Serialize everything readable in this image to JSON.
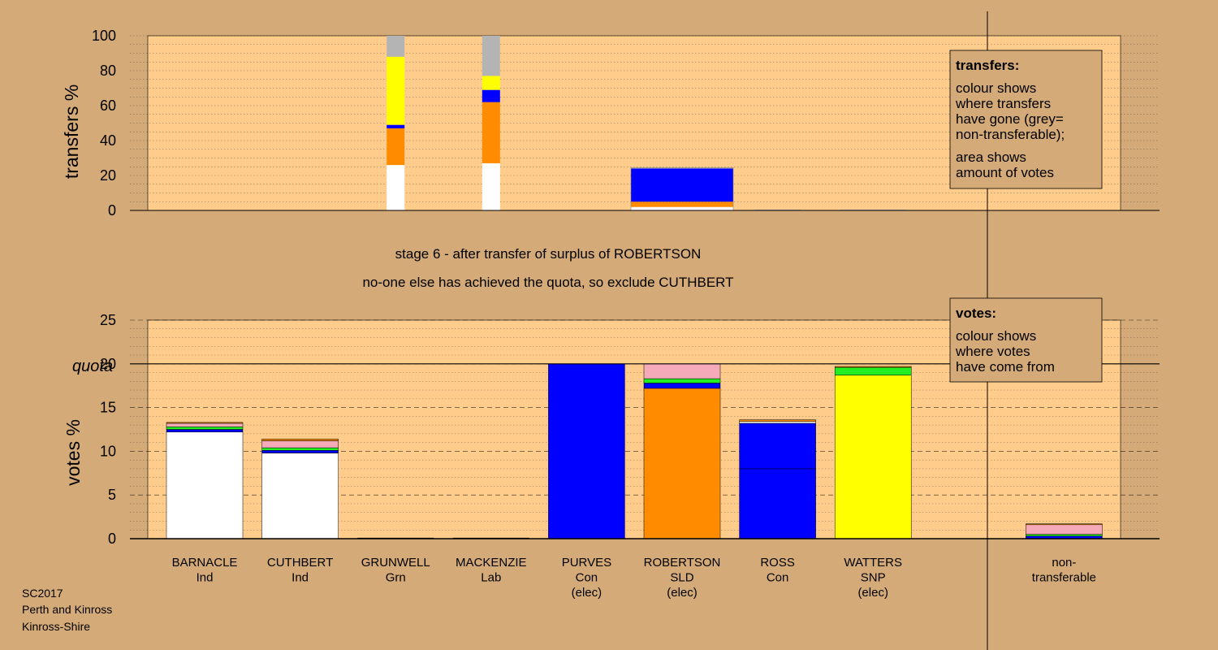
{
  "captions": {
    "stage": "stage 6 - after transfer of surplus of ROBERTSON",
    "decision": "no-one else has achieved the quota, so exclude CUTHBERT"
  },
  "footer": [
    "SC2017",
    "Perth and Kinross",
    "Kinross-Shire"
  ],
  "legend_transfers": {
    "title": "transfers:",
    "lines": [
      "colour shows",
      "where transfers",
      "have gone (grey=",
      "non-transferable);",
      "area shows",
      "amount of votes"
    ]
  },
  "legend_votes": {
    "title": "votes:",
    "lines": [
      "colour shows",
      "where votes",
      "have come from"
    ]
  },
  "colors": {
    "background": "#d4aa78",
    "plot": "#ffcc8c",
    "Ind": "#ffffff",
    "Grn": "#22ee22",
    "Lab": "#f4aab8",
    "Con": "#0000ff",
    "SLD": "#ff8c00",
    "SNP": "#ffff00",
    "nontransferable": "#b4b4b4"
  },
  "chart_data": [
    {
      "id": "transfers",
      "type": "bar",
      "ylabel": "transfers %",
      "ylim": [
        0,
        100
      ],
      "yticks": [
        0,
        20,
        40,
        60,
        80,
        100
      ],
      "columns": [
        {
          "candidate": "GRUNWELL",
          "segments": [
            {
              "party": "Ind",
              "value": 26
            },
            {
              "party": "SLD",
              "value": 21
            },
            {
              "party": "Con",
              "value": 2
            },
            {
              "party": "SNP",
              "value": 39
            },
            {
              "party": "nontransferable",
              "value": 12
            }
          ]
        },
        {
          "candidate": "MACKENZIE",
          "segments": [
            {
              "party": "Ind",
              "value": 27
            },
            {
              "party": "SLD",
              "value": 35
            },
            {
              "party": "Con",
              "value": 7
            },
            {
              "party": "SNP",
              "value": 8
            },
            {
              "party": "nontransferable",
              "value": 23
            }
          ]
        },
        {
          "candidate": "ROBERTSON",
          "segments": [
            {
              "party": "Ind",
              "value": 2
            },
            {
              "party": "SLD",
              "value": 3
            },
            {
              "party": "Con",
              "value": 19
            },
            {
              "party": "nontransferable",
              "value": 0.5
            }
          ]
        },
        {
          "candidate": "ROSS",
          "segments": [
            {
              "party": "nontransferable",
              "value": 0.5
            }
          ]
        },
        {
          "candidate": "WATTERS",
          "segments": [
            {
              "party": "nontransferable",
              "value": 0.5
            }
          ]
        }
      ]
    },
    {
      "id": "votes",
      "type": "bar",
      "ylabel": "votes %",
      "ylim": [
        0,
        25
      ],
      "yticks": [
        0,
        5,
        10,
        15,
        20,
        25
      ],
      "quota": 20,
      "quota_label": "quota",
      "categories": [
        {
          "name": "BARNACLE",
          "sub": [
            "Ind"
          ]
        },
        {
          "name": "CUTHBERT",
          "sub": [
            "Ind"
          ]
        },
        {
          "name": "GRUNWELL",
          "sub": [
            "Grn"
          ]
        },
        {
          "name": "MACKENZIE",
          "sub": [
            "Lab"
          ]
        },
        {
          "name": "PURVES",
          "sub": [
            "Con",
            "(elec)"
          ]
        },
        {
          "name": "ROBERTSON",
          "sub": [
            "SLD",
            "(elec)"
          ]
        },
        {
          "name": "ROSS",
          "sub": [
            "Con"
          ]
        },
        {
          "name": "WATTERS",
          "sub": [
            "SNP",
            "(elec)"
          ]
        },
        {
          "name": "",
          "sub": []
        },
        {
          "name": "non-",
          "sub": [
            "transferable"
          ]
        }
      ],
      "stacks": [
        [
          {
            "party": "Ind",
            "value": 12.2
          },
          {
            "party": "Con",
            "value": 0.3
          },
          {
            "party": "Grn",
            "value": 0.3
          },
          {
            "party": "Lab",
            "value": 0.4
          },
          {
            "party": "SLD",
            "value": 0.1
          }
        ],
        [
          {
            "party": "Ind",
            "value": 9.8
          },
          {
            "party": "Con",
            "value": 0.3
          },
          {
            "party": "Grn",
            "value": 0.3
          },
          {
            "party": "Lab",
            "value": 0.8
          },
          {
            "party": "SLD",
            "value": 0.2
          }
        ],
        [],
        [],
        [
          {
            "party": "Con",
            "value": 20.0
          }
        ],
        [
          {
            "party": "SLD",
            "value": 17.2
          },
          {
            "party": "Con",
            "value": 0.6
          },
          {
            "party": "Grn",
            "value": 0.5
          },
          {
            "party": "Lab",
            "value": 1.7
          }
        ],
        [
          {
            "party": "Con",
            "value": 8.0
          },
          {
            "party": "Con",
            "value": 5.2
          },
          {
            "party": "Ind",
            "value": 0.2
          },
          {
            "party": "SLD",
            "value": 0.2
          }
        ],
        [
          {
            "party": "SNP",
            "value": 18.7
          },
          {
            "party": "Grn",
            "value": 0.9
          },
          {
            "party": "SLD",
            "value": 0.1
          }
        ],
        [],
        [
          {
            "party": "Con",
            "value": 0.3
          },
          {
            "party": "Grn",
            "value": 0.2
          },
          {
            "party": "Lab",
            "value": 1.1
          },
          {
            "party": "SLD",
            "value": 0.1
          }
        ]
      ]
    }
  ]
}
